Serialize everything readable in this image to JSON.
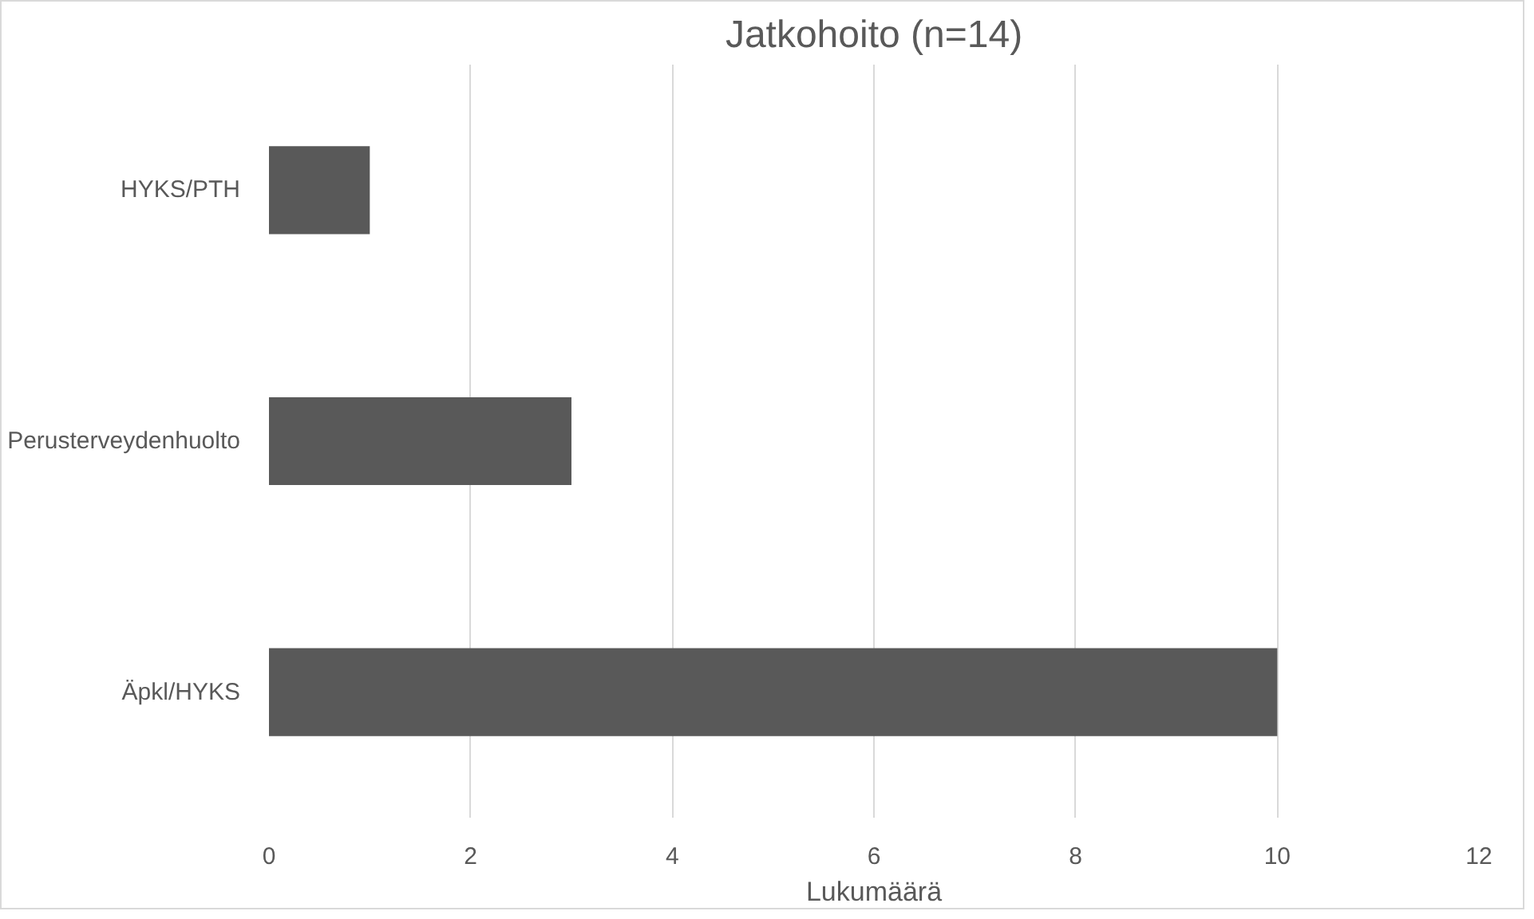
{
  "chart_data": {
    "type": "bar",
    "orientation": "horizontal",
    "title": "Jatkohoito (n=14)",
    "xlabel": "Lukumäärä",
    "categories": [
      "HYKS/PTH",
      "Perusterveydenhuolto",
      "Äpkl/HYKS"
    ],
    "values": [
      1,
      3,
      10
    ],
    "color": "#595959",
    "xlim": [
      0,
      12
    ],
    "xticks": [
      0,
      2,
      4,
      6,
      8,
      10,
      12
    ],
    "grid": "x"
  }
}
